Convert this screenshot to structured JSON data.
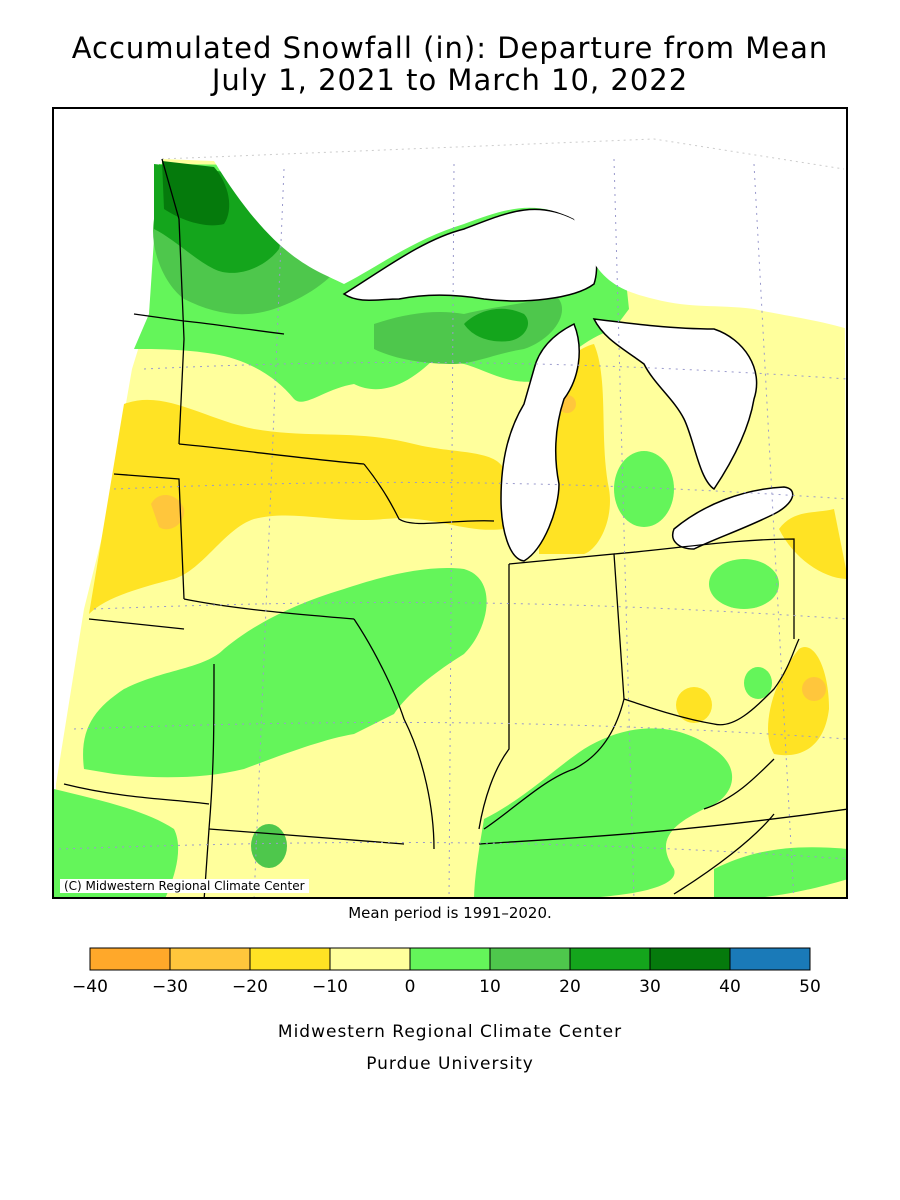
{
  "title_line1": "Accumulated Snowfall (in): Departure from Mean",
  "title_line2": "July 1, 2021 to March 10, 2022",
  "map_credit": "(C) Midwestern Regional Climate Center",
  "mean_period_note": "Mean period is 1991–2020.",
  "legend": {
    "tick_labels": [
      "−40",
      "−30",
      "−20",
      "−10",
      "0",
      "10",
      "20",
      "30",
      "40",
      "50"
    ],
    "bins": [
      {
        "range": [
          -40,
          -30
        ],
        "color": "#ffa82a"
      },
      {
        "range": [
          -30,
          -20
        ],
        "color": "#ffc63c"
      },
      {
        "range": [
          -20,
          -10
        ],
        "color": "#ffe324"
      },
      {
        "range": [
          -10,
          0
        ],
        "color": "#ffff9c"
      },
      {
        "range": [
          0,
          10
        ],
        "color": "#64f55a"
      },
      {
        "range": [
          10,
          20
        ],
        "color": "#4ec74c"
      },
      {
        "range": [
          20,
          30
        ],
        "color": "#14a51c"
      },
      {
        "range": [
          30,
          40
        ],
        "color": "#057a0c"
      },
      {
        "range": [
          40,
          50
        ],
        "color": "#1a7ab8"
      }
    ]
  },
  "footer_line1": "Midwestern Regional Climate Center",
  "footer_line2": "Purdue University"
}
